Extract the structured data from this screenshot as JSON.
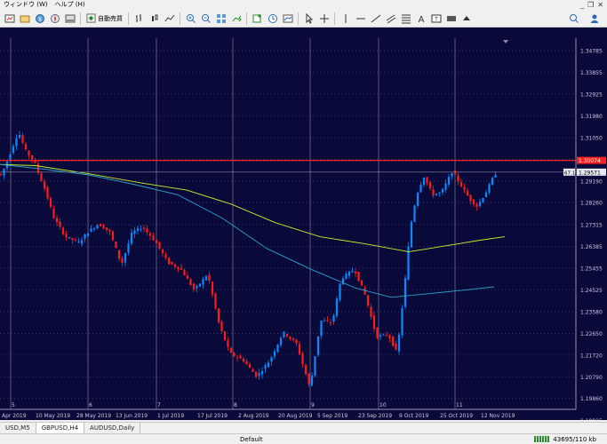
{
  "menu": {
    "window": "ウィンドウ (W)",
    "help": "ヘルプ (H)"
  },
  "toolbar": {
    "auto_trade": "自動売買",
    "icons": [
      "new-chart-icon",
      "profiles-icon",
      "market-watch-icon",
      "navigator-icon",
      "auto-trade-icon",
      "bar-chart-icon",
      "zoom-in-icon",
      "zoom-out-icon",
      "tile-icon",
      "auto-scroll-icon",
      "chart-shift-icon",
      "indicators-icon",
      "period-icon",
      "templates-icon",
      "cursor-icon",
      "crosshair-icon",
      "vertical-line-icon",
      "horizontal-line-icon",
      "trendline-icon",
      "channel-icon",
      "fibo-icon",
      "text-icon",
      "label-icon",
      "rectangle-icon",
      "arrows-icon",
      "search-icon",
      "account-icon"
    ]
  },
  "chart": {
    "price_axis": [
      "1.34785",
      "1.33855",
      "1.32925",
      "1.31980",
      "1.31050",
      "1.30120",
      "1.29190",
      "1.28260",
      "1.27315",
      "1.26385",
      "1.25455",
      "1.24525",
      "1.23580",
      "1.22650",
      "1.21720",
      "1.20790",
      "1.19860",
      "1.18915"
    ],
    "current_price": "1.29571",
    "red_line_price": "1.30074",
    "price_marker_left": "67.1",
    "date_axis": [
      "Apr 2019",
      "10 May 2019",
      "28 May 2019",
      "13 Jun 2019",
      "1 Jul 2019",
      "17 Jul 2019",
      "2 Aug 2019",
      "20 Aug 2019",
      "5 Sep 2019",
      "23 Sep 2019",
      "9 Oct 2019",
      "25 Oct 2019",
      "12 Nov 2019"
    ],
    "period_separators": [
      "5",
      "6",
      "7",
      "8",
      "9",
      "10",
      "11"
    ],
    "colors": {
      "background": "#0a0a3a",
      "grid": "#3a3a6a",
      "bull": "#0a88ff",
      "bear": "#ff1a1a",
      "ma_slow": "#c8f02a",
      "ma_fast": "#2aa0c8",
      "hline": "#ff2020",
      "axis_text": "#c8c8d8"
    }
  },
  "tabs": [
    "USD,M5",
    "GBPUSD,H4",
    "AUDUSD,Daily"
  ],
  "status": {
    "profile": "Default",
    "traffic": "43695/110 kb"
  }
}
